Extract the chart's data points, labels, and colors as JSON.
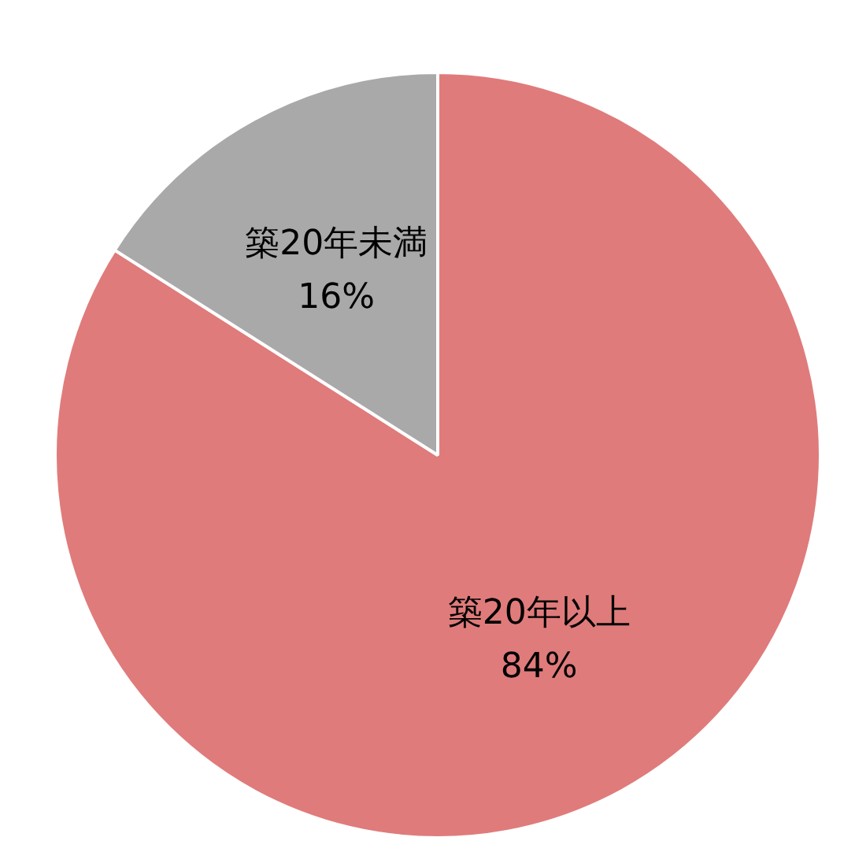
{
  "chart_data": {
    "type": "pie",
    "categories": [
      "築20年以上",
      "築20年未満"
    ],
    "values": [
      84,
      16
    ],
    "colors": [
      "#e07b7b",
      "#a9a9a9"
    ],
    "value_labels": [
      "84%",
      "16%"
    ],
    "legend": false
  }
}
